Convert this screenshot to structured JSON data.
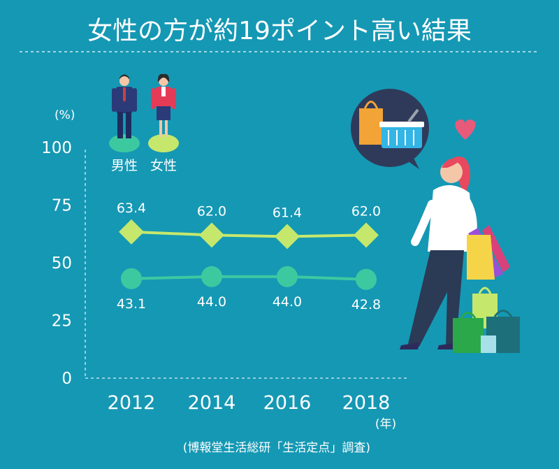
{
  "title": "女性の方が約19ポイント高い結果",
  "y_unit": "(%)",
  "x_unit": "(年)",
  "source": "(博報堂生活総研「生活定点」調査)",
  "colors": {
    "background": "#1598b4",
    "female": "#c5e86c",
    "male": "#3dc9a0"
  },
  "chart_data": {
    "type": "line",
    "categories": [
      "2012",
      "2014",
      "2016",
      "2018"
    ],
    "series": [
      {
        "name": "女性",
        "values": [
          63.4,
          62.0,
          61.4,
          62.0
        ]
      },
      {
        "name": "男性",
        "values": [
          43.1,
          44.0,
          44.0,
          42.8
        ]
      }
    ],
    "ylim": [
      0,
      100
    ],
    "yticks": [
      "0",
      "25",
      "50",
      "75",
      "100"
    ],
    "legend": [
      "男性",
      "女性"
    ]
  }
}
